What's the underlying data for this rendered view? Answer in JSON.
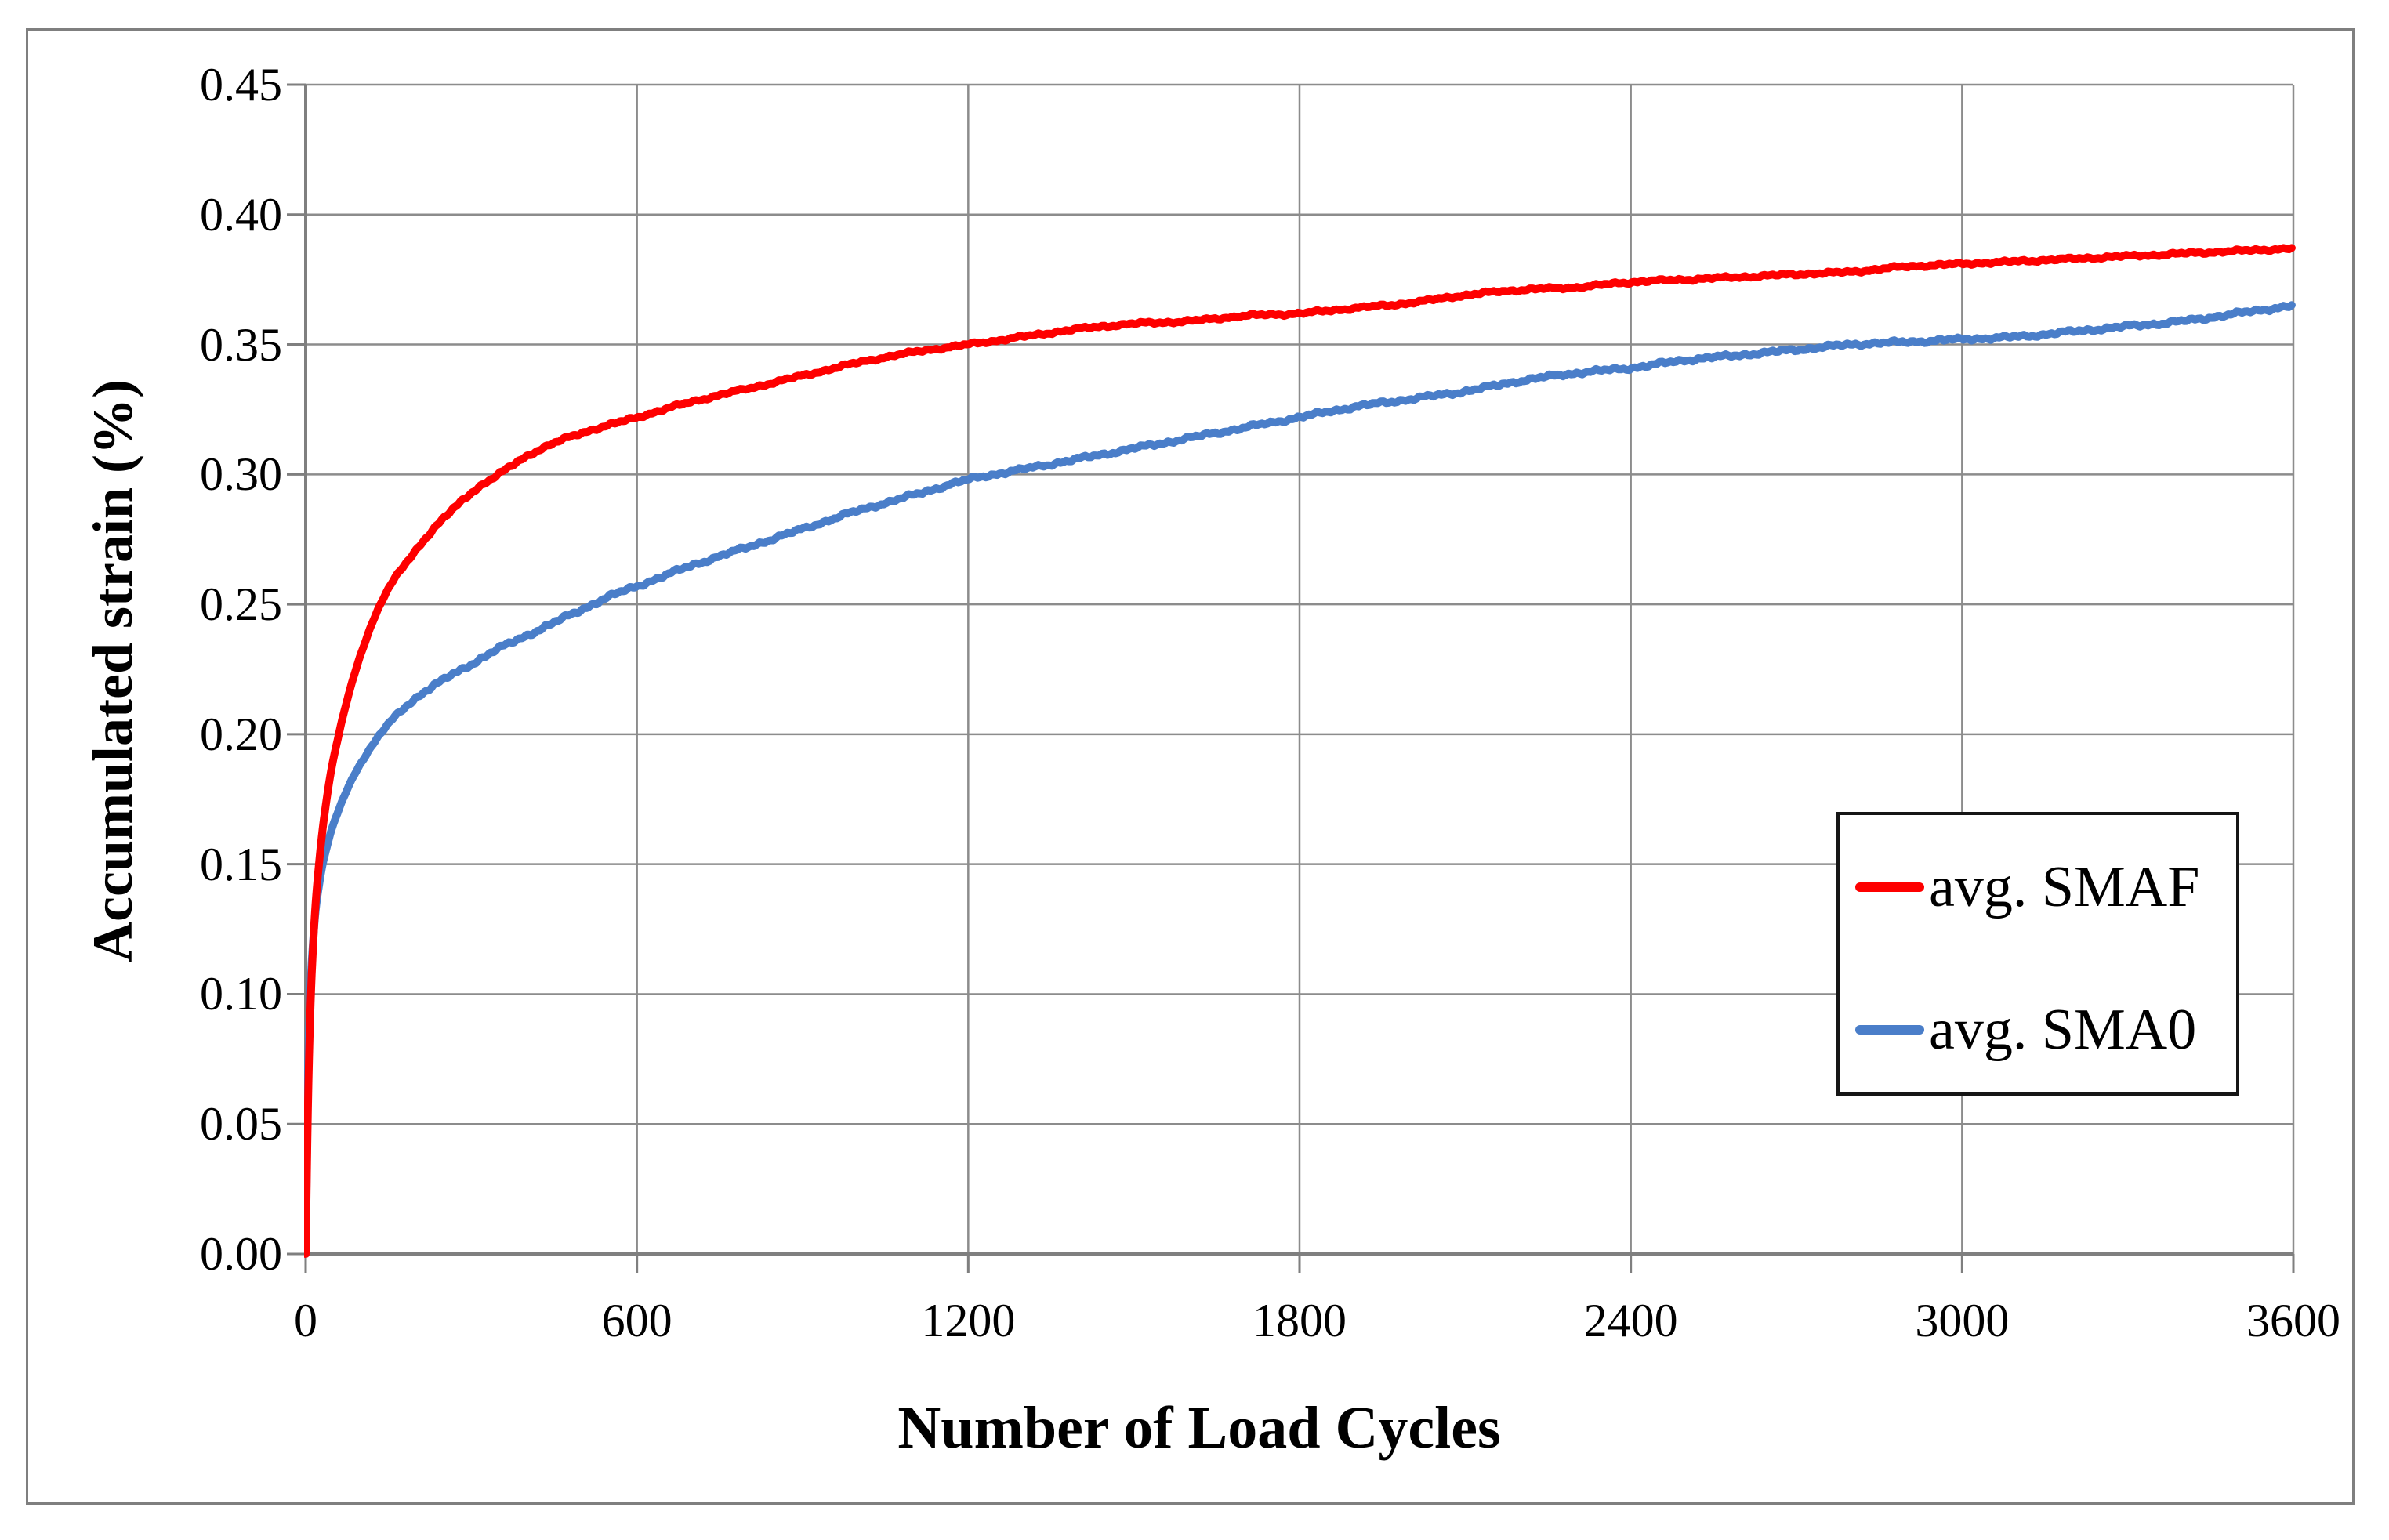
{
  "figure": {
    "background_color": "#ffffff",
    "border_color": "#7f7f7f",
    "gridline_color": "#8c8c8c",
    "axis_line_color": "#7f7f7f",
    "text_color": "#000000",
    "legend_border_color": "#161616"
  },
  "chart_data": {
    "type": "line",
    "title": "",
    "xlabel": "Number of Load Cycles",
    "ylabel": "Accumulated strain (%)",
    "xlim": [
      0,
      3600
    ],
    "ylim": [
      0.0,
      0.45
    ],
    "grid": true,
    "legend_position": "inside-right",
    "x_tick_labels": [
      "0",
      "600",
      "1200",
      "1800",
      "2400",
      "3000",
      "3600"
    ],
    "x_tick_values": [
      0,
      600,
      1200,
      1800,
      2400,
      3000,
      3600
    ],
    "y_tick_labels": [
      "0.00",
      "0.05",
      "0.10",
      "0.15",
      "0.20",
      "0.25",
      "0.30",
      "0.35",
      "0.40",
      "0.45"
    ],
    "y_tick_values": [
      0.0,
      0.05,
      0.1,
      0.15,
      0.2,
      0.25,
      0.3,
      0.35,
      0.4,
      0.45
    ],
    "series": [
      {
        "name": "avg. SMAF",
        "color": "#fe0000",
        "points": [
          [
            0,
            0
          ],
          [
            4,
            0.055
          ],
          [
            8,
            0.09
          ],
          [
            15,
            0.125
          ],
          [
            25,
            0.152
          ],
          [
            40,
            0.178
          ],
          [
            60,
            0.2
          ],
          [
            80,
            0.217
          ],
          [
            100,
            0.231
          ],
          [
            125,
            0.245
          ],
          [
            150,
            0.256
          ],
          [
            200,
            0.271
          ],
          [
            250,
            0.283
          ],
          [
            300,
            0.293
          ],
          [
            350,
            0.3
          ],
          [
            400,
            0.307
          ],
          [
            450,
            0.312
          ],
          [
            500,
            0.316
          ],
          [
            550,
            0.319
          ],
          [
            600,
            0.322
          ],
          [
            700,
            0.328
          ],
          [
            800,
            0.333
          ],
          [
            900,
            0.338
          ],
          [
            1000,
            0.343
          ],
          [
            1100,
            0.347
          ],
          [
            1200,
            0.35
          ],
          [
            1300,
            0.353
          ],
          [
            1400,
            0.356
          ],
          [
            1500,
            0.358
          ],
          [
            1600,
            0.359
          ],
          [
            1700,
            0.361
          ],
          [
            1800,
            0.362
          ],
          [
            1900,
            0.364
          ],
          [
            2000,
            0.366
          ],
          [
            2100,
            0.369
          ],
          [
            2200,
            0.371
          ],
          [
            2300,
            0.372
          ],
          [
            2400,
            0.374
          ],
          [
            2500,
            0.375
          ],
          [
            2600,
            0.376
          ],
          [
            2700,
            0.377
          ],
          [
            2800,
            0.378
          ],
          [
            2900,
            0.38
          ],
          [
            3000,
            0.381
          ],
          [
            3100,
            0.382
          ],
          [
            3200,
            0.383
          ],
          [
            3300,
            0.384
          ],
          [
            3400,
            0.385
          ],
          [
            3500,
            0.386
          ],
          [
            3600,
            0.387
          ]
        ]
      },
      {
        "name": "avg. SMA0",
        "color": "#4a7ec9",
        "points": [
          [
            0,
            0
          ],
          [
            4,
            0.065
          ],
          [
            8,
            0.098
          ],
          [
            15,
            0.125
          ],
          [
            25,
            0.143
          ],
          [
            40,
            0.158
          ],
          [
            60,
            0.171
          ],
          [
            80,
            0.181
          ],
          [
            100,
            0.189
          ],
          [
            125,
            0.197
          ],
          [
            150,
            0.204
          ],
          [
            200,
            0.214
          ],
          [
            250,
            0.221
          ],
          [
            300,
            0.227
          ],
          [
            350,
            0.233
          ],
          [
            400,
            0.238
          ],
          [
            450,
            0.243
          ],
          [
            500,
            0.248
          ],
          [
            550,
            0.253
          ],
          [
            600,
            0.257
          ],
          [
            700,
            0.265
          ],
          [
            800,
            0.272
          ],
          [
            900,
            0.279
          ],
          [
            1000,
            0.286
          ],
          [
            1100,
            0.292
          ],
          [
            1200,
            0.298
          ],
          [
            1300,
            0.302
          ],
          [
            1400,
            0.306
          ],
          [
            1500,
            0.31
          ],
          [
            1600,
            0.314
          ],
          [
            1700,
            0.318
          ],
          [
            1800,
            0.322
          ],
          [
            1900,
            0.326
          ],
          [
            2000,
            0.329
          ],
          [
            2100,
            0.332
          ],
          [
            2200,
            0.336
          ],
          [
            2300,
            0.339
          ],
          [
            2400,
            0.341
          ],
          [
            2500,
            0.344
          ],
          [
            2600,
            0.346
          ],
          [
            2700,
            0.348
          ],
          [
            2800,
            0.35
          ],
          [
            2900,
            0.351
          ],
          [
            3000,
            0.352
          ],
          [
            3100,
            0.353
          ],
          [
            3200,
            0.355
          ],
          [
            3300,
            0.357
          ],
          [
            3400,
            0.359
          ],
          [
            3500,
            0.362
          ],
          [
            3600,
            0.365
          ]
        ]
      }
    ]
  },
  "legend": {
    "items": [
      {
        "label": "avg. SMAF",
        "color": "#fe0000"
      },
      {
        "label": "avg. SMA0",
        "color": "#4a7ec9"
      }
    ]
  }
}
